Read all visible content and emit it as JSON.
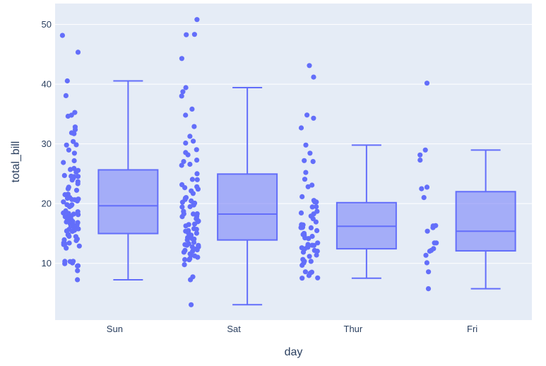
{
  "colors": {
    "plot_background": "#e5ecf6",
    "page_background": "#ffffff",
    "grid": "#ffffff",
    "box_stroke": "#636efa",
    "box_fill": "rgba(99,110,250,0.5)",
    "points": "#636efa",
    "text": "#2a3f5f"
  },
  "chart_data": {
    "type": "box",
    "xlabel": "day",
    "ylabel": "total_bill",
    "categories": [
      "Sun",
      "Sat",
      "Thur",
      "Fri"
    ],
    "ylim": [
      0.5,
      53.5
    ],
    "yticks": [
      10,
      20,
      30,
      40,
      50
    ],
    "grid": true,
    "legend": "none",
    "boxes": [
      {
        "category": "Sun",
        "min": 7.25,
        "q1": 14.99,
        "median": 19.63,
        "q3": 25.65,
        "max": 40.55,
        "points": [
          48.17,
          45.35,
          40.55,
          38.07,
          35.26,
          34.81,
          34.63,
          32.83,
          32.4,
          31.85,
          31.71,
          30.4,
          29.85,
          29.8,
          28.97,
          28.44,
          27.18,
          26.88,
          25.89,
          25.71,
          25.56,
          25.28,
          24.71,
          24.59,
          24.55,
          24.52,
          24.27,
          23.95,
          23.68,
          23.33,
          22.75,
          22.49,
          22.23,
          21.58,
          21.5,
          21.16,
          21.01,
          20.9,
          20.76,
          20.69,
          20.65,
          20.45,
          20.29,
          19.82,
          19.81,
          19.65,
          19.49,
          18.78,
          18.64,
          18.43,
          18.35,
          18.29,
          18.24,
          18.15,
          17.92,
          17.81,
          17.78,
          17.51,
          17.46,
          17.31,
          17.29,
          17.26,
          16.99,
          16.93,
          16.82,
          16.66,
          16.45,
          16.4,
          16.31,
          16.29,
          16.21,
          15.98,
          15.77,
          15.69,
          15.53,
          15.42,
          15.36,
          14.83,
          14.78,
          14.52,
          14.48,
          14.07,
          13.94,
          13.81,
          13.42,
          13.39,
          13.27,
          13.13,
          12.9,
          12.54,
          10.34,
          10.33,
          10.29,
          10.07,
          9.94,
          9.6,
          9.55,
          8.77,
          7.25
        ]
      },
      {
        "category": "Sat",
        "min": 3.07,
        "q1": 13.91,
        "median": 18.24,
        "q3": 24.95,
        "max": 39.42,
        "points": [
          50.81,
          48.33,
          48.27,
          44.3,
          39.42,
          38.73,
          38.01,
          35.83,
          34.81,
          32.9,
          31.27,
          30.46,
          30.14,
          29.03,
          28.55,
          28.17,
          27.28,
          27.05,
          26.59,
          26.41,
          25.0,
          24.06,
          24.01,
          23.17,
          22.82,
          22.67,
          22.42,
          22.12,
          21.7,
          21.01,
          20.92,
          20.69,
          20.45,
          20.23,
          20.08,
          19.81,
          19.77,
          19.49,
          19.44,
          18.69,
          18.29,
          18.28,
          18.26,
          17.92,
          17.82,
          17.59,
          17.47,
          17.07,
          16.97,
          16.58,
          16.49,
          16.27,
          15.81,
          15.69,
          15.48,
          15.38,
          15.06,
          15.04,
          14.73,
          14.31,
          14.15,
          14.07,
          13.9,
          13.51,
          13.28,
          13.13,
          13.03,
          13.0,
          12.76,
          12.74,
          12.43,
          12.26,
          12.16,
          12.02,
          11.87,
          11.59,
          11.35,
          11.24,
          11.02,
          10.77,
          10.63,
          10.59,
          9.78,
          7.74,
          7.25,
          3.07
        ]
      },
      {
        "category": "Thur",
        "min": 7.51,
        "q1": 12.44,
        "median": 16.2,
        "q3": 20.16,
        "max": 29.8,
        "points": [
          43.11,
          41.19,
          34.83,
          34.3,
          32.68,
          29.8,
          28.44,
          27.2,
          27.05,
          25.21,
          24.08,
          23.1,
          22.82,
          21.16,
          20.53,
          20.29,
          20.27,
          19.49,
          19.44,
          18.71,
          18.43,
          18.28,
          17.92,
          17.47,
          16.93,
          16.47,
          16.43,
          16.21,
          16.04,
          16.0,
          15.98,
          15.95,
          15.48,
          15.01,
          14.83,
          14.73,
          14.52,
          14.26,
          14.15,
          13.42,
          13.16,
          13.03,
          13.0,
          12.74,
          12.69,
          12.6,
          12.43,
          12.16,
          12.03,
          11.87,
          11.38,
          11.17,
          10.65,
          10.34,
          10.33,
          10.07,
          9.68,
          8.58,
          8.52,
          8.35,
          7.95,
          7.56,
          7.51
        ]
      },
      {
        "category": "Fri",
        "min": 5.75,
        "q1": 12.09,
        "median": 15.38,
        "q3": 22.0,
        "max": 28.97,
        "points": [
          40.17,
          28.97,
          28.15,
          27.28,
          22.75,
          22.49,
          21.01,
          16.32,
          16.27,
          15.98,
          15.38,
          13.42,
          13.42,
          12.46,
          12.16,
          12.03,
          11.35,
          10.09,
          8.58,
          5.75
        ]
      }
    ]
  }
}
